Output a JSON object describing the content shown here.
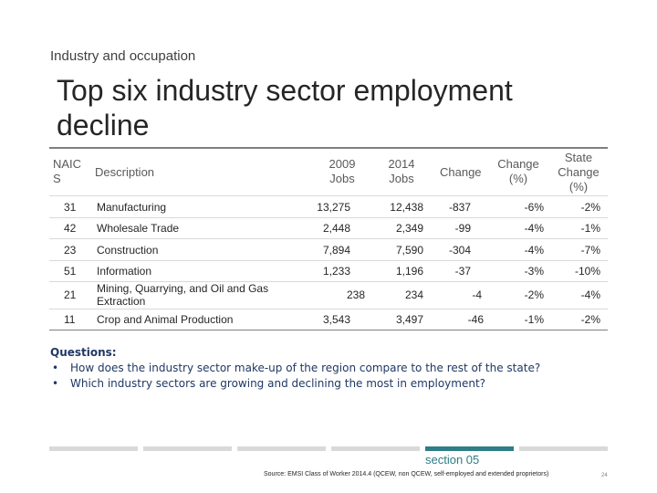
{
  "header": {
    "section_label": "Industry and occupation",
    "title": "Top six industry sector employment decline"
  },
  "table": {
    "columns": {
      "naics": "NAIC S",
      "description": "Description",
      "jobs2009": "2009 Jobs",
      "jobs2014": "2014 Jobs",
      "change": "Change",
      "change_pct": "Change (%)",
      "state_change_pct": "State Change (%)"
    },
    "rows": [
      {
        "naics": "31",
        "description": "Manufacturing",
        "jobs2009": "13,275",
        "jobs2014": "12,438",
        "change": "-837",
        "change_pct": "-6%",
        "state_change_pct": "-2%"
      },
      {
        "naics": "42",
        "description": "Wholesale Trade",
        "jobs2009": "2,448",
        "jobs2014": "2,349",
        "change": "-99",
        "change_pct": "-4%",
        "state_change_pct": "-1%"
      },
      {
        "naics": "23",
        "description": "Construction",
        "jobs2009": "7,894",
        "jobs2014": "7,590",
        "change": "-304",
        "change_pct": "-4%",
        "state_change_pct": "-7%"
      },
      {
        "naics": "51",
        "description": "Information",
        "jobs2009": "1,233",
        "jobs2014": "1,196",
        "change": "-37",
        "change_pct": "-3%",
        "state_change_pct": "-10%"
      },
      {
        "naics": "21",
        "description": "Mining, Quarrying, and Oil and Gas Extraction",
        "jobs2009": "238",
        "jobs2014": "234",
        "change": "-4",
        "change_pct": "-2%",
        "state_change_pct": "-4%"
      },
      {
        "naics": "11",
        "description": "Crop and Animal Production",
        "jobs2009": "3,543",
        "jobs2014": "3,497",
        "change": "-46",
        "change_pct": "-1%",
        "state_change_pct": "-2%"
      }
    ]
  },
  "questions": {
    "heading": "Questions:",
    "items": [
      "How does the industry sector make-up of the region compare to the rest of the state?",
      "Which industry sectors are growing and declining the most in employment?"
    ]
  },
  "footer": {
    "section": "section 05",
    "source": "Source: EMSI Class of Worker 2014.4 (QCEW, non QCEW, self-employed and extended proprietors)",
    "page_number": "24",
    "nav_active_index": 5
  },
  "colors": {
    "accent": "#2e7d87",
    "question_text": "#1f3864",
    "nav_inactive": "#d9d9d9"
  }
}
